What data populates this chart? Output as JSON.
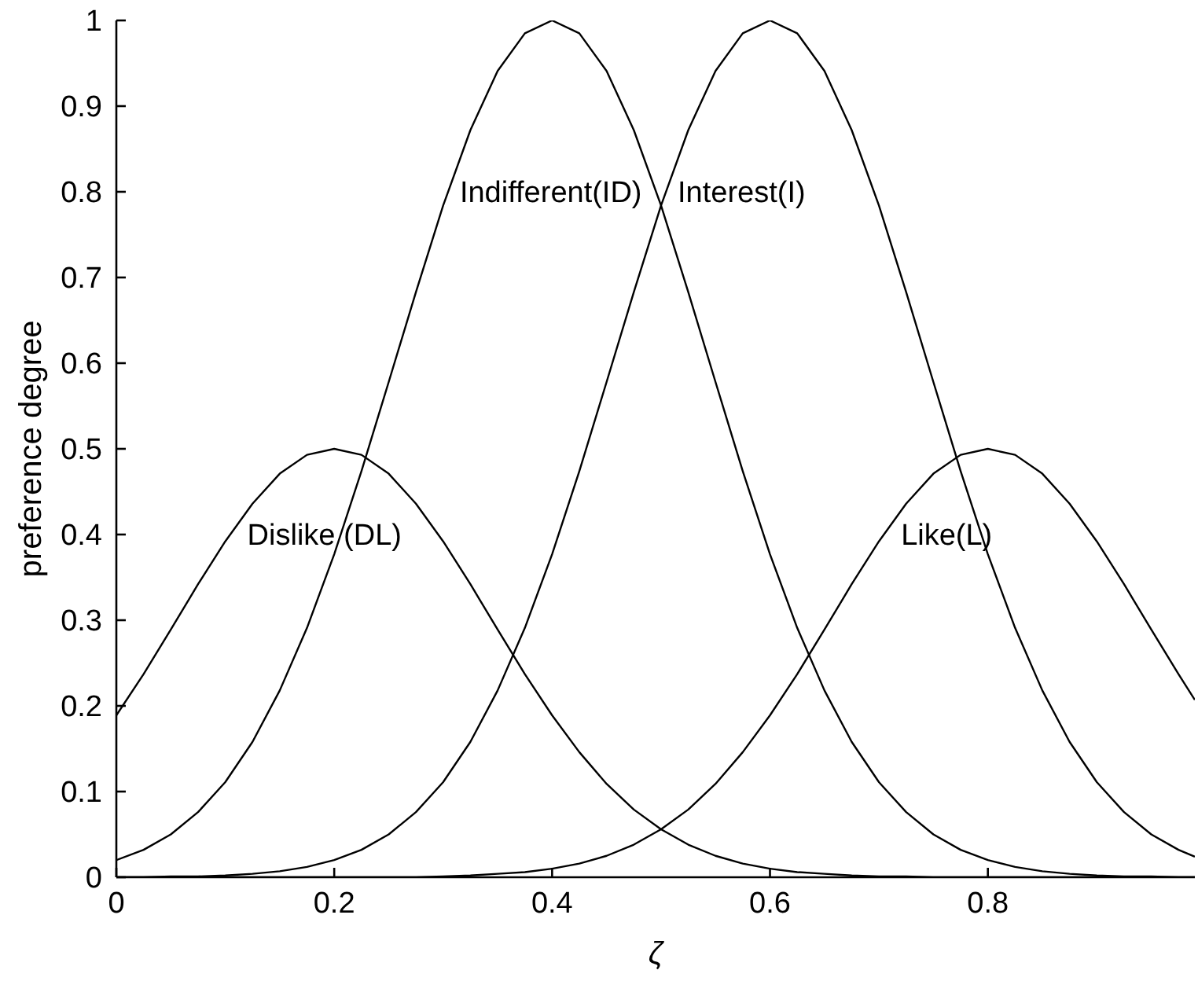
{
  "chart_data": {
    "type": "line",
    "xlabel": "ζ",
    "ylabel": "preference degree",
    "x": [
      0,
      0.025,
      0.05,
      0.075,
      0.1,
      0.125,
      0.15,
      0.175,
      0.2,
      0.225,
      0.25,
      0.275,
      0.3,
      0.325,
      0.35,
      0.375,
      0.4,
      0.425,
      0.45,
      0.475,
      0.5,
      0.525,
      0.55,
      0.575,
      0.6,
      0.625,
      0.65,
      0.675,
      0.7,
      0.725,
      0.75,
      0.775,
      0.8,
      0.825,
      0.85,
      0.875,
      0.9,
      0.925,
      0.95,
      0.975,
      0.99
    ],
    "series": [
      {
        "name": "Dislike (DL)",
        "color": "#000000",
        "values": [
          0.189,
          0.237,
          0.289,
          0.342,
          0.392,
          0.436,
          0.471,
          0.493,
          0.5,
          0.493,
          0.471,
          0.436,
          0.392,
          0.342,
          0.289,
          0.237,
          0.189,
          0.146,
          0.109,
          0.079,
          0.056,
          0.038,
          0.025,
          0.016,
          0.01,
          0.006,
          0.004,
          0.002,
          0.001,
          0.001,
          0,
          0,
          0,
          0,
          0,
          0,
          0,
          0,
          0,
          0,
          0
        ]
      },
      {
        "name": "Indifferent(ID)",
        "color": "#000000",
        "values": [
          0.02,
          0.032,
          0.05,
          0.076,
          0.111,
          0.158,
          0.218,
          0.291,
          0.377,
          0.474,
          0.578,
          0.683,
          0.784,
          0.872,
          0.941,
          0.985,
          1,
          0.985,
          0.941,
          0.872,
          0.784,
          0.683,
          0.578,
          0.474,
          0.377,
          0.291,
          0.218,
          0.158,
          0.111,
          0.076,
          0.05,
          0.032,
          0.02,
          0.012,
          0.007,
          0.004,
          0.002,
          0.001,
          0.001,
          0,
          0
        ]
      },
      {
        "name": "Interest(I)",
        "color": "#000000",
        "values": [
          0,
          0,
          0.001,
          0.001,
          0.002,
          0.004,
          0.007,
          0.012,
          0.02,
          0.032,
          0.05,
          0.076,
          0.111,
          0.158,
          0.218,
          0.291,
          0.377,
          0.474,
          0.578,
          0.683,
          0.784,
          0.872,
          0.941,
          0.985,
          1,
          0.985,
          0.941,
          0.872,
          0.784,
          0.683,
          0.578,
          0.474,
          0.377,
          0.291,
          0.218,
          0.158,
          0.111,
          0.076,
          0.05,
          0.032,
          0.024
        ]
      },
      {
        "name": "Like(L)",
        "color": "#000000",
        "values": [
          0,
          0,
          0,
          0,
          0,
          0,
          0,
          0,
          0,
          0,
          0,
          0,
          0.001,
          0.002,
          0.004,
          0.006,
          0.01,
          0.016,
          0.025,
          0.038,
          0.056,
          0.079,
          0.109,
          0.146,
          0.189,
          0.237,
          0.289,
          0.342,
          0.392,
          0.436,
          0.471,
          0.493,
          0.5,
          0.493,
          0.471,
          0.436,
          0.392,
          0.342,
          0.289,
          0.237,
          0.207
        ]
      }
    ],
    "xlim": [
      0,
      0.99
    ],
    "xticks": [
      0,
      0.2,
      0.4,
      0.6,
      0.8
    ],
    "ylim": [
      0,
      1
    ],
    "yticks": [
      0,
      0.1,
      0.2,
      0.3,
      0.4,
      0.5,
      0.6,
      0.7,
      0.8,
      0.9,
      1
    ]
  }
}
